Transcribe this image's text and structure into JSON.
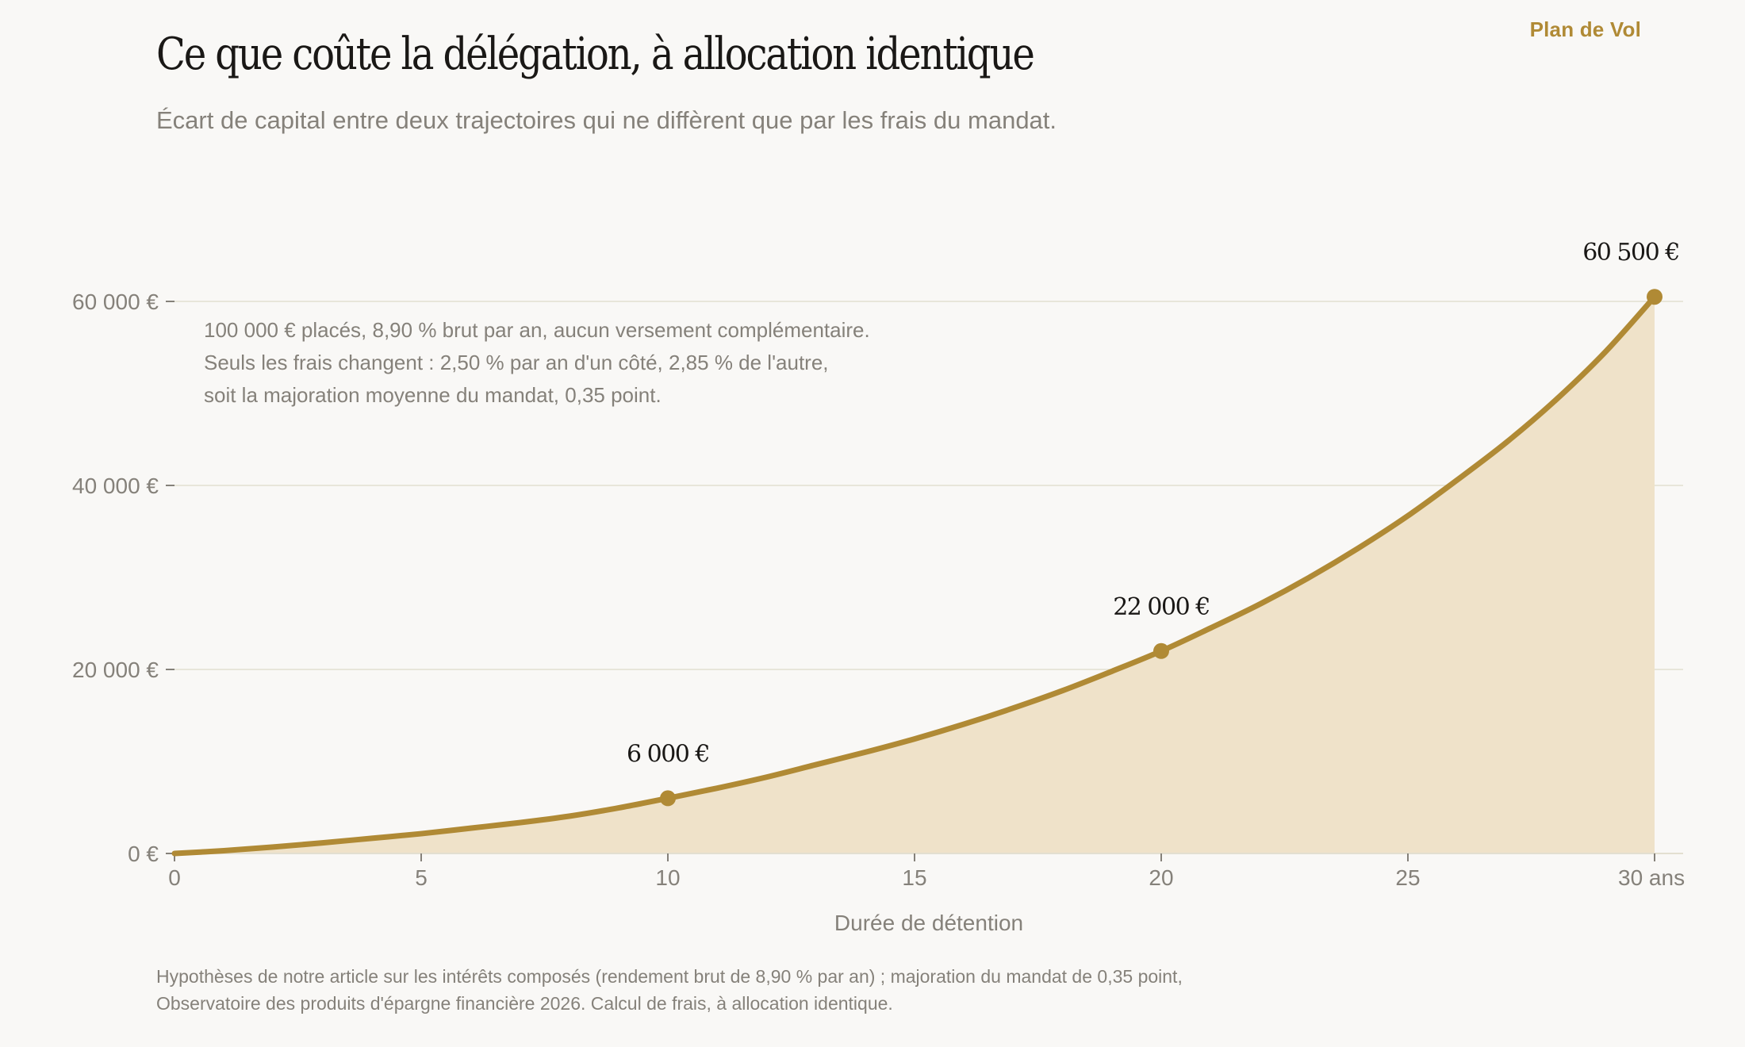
{
  "header": {
    "brand": "Plan de Vol",
    "title": "Ce que coûte la délégation, à allocation identique",
    "subtitle": "Écart de capital entre deux trajectoires qui ne diffèrent que par les frais du mandat."
  },
  "footnote": "Hypothèses de notre article sur les intérêts composés (rendement brut de 8,90 % par an) ; majoration du mandat de 0,35 point, Observatoire des produits d'épargne financière 2026. Calcul de frais, à allocation identique.",
  "colors": {
    "accent": "#b08a35",
    "area_fill": "#efe2c9",
    "grid": "#e3dfd1",
    "muted_text": "#85817a"
  },
  "chart_data": {
    "type": "area",
    "title": "Ce que coûte la délégation, à allocation identique",
    "subtitle": "Écart de capital entre deux trajectoires qui ne diffèrent que par les frais du mandat.",
    "xlabel": "Durée de détention",
    "ylabel": "",
    "xlim": [
      0,
      30
    ],
    "ylim": [
      0,
      60500
    ],
    "x_ticks": [
      0,
      5,
      10,
      15,
      20,
      25,
      30
    ],
    "x_tick_labels": [
      "0",
      "5",
      "10",
      "15",
      "20",
      "25",
      "30 ans"
    ],
    "y_ticks": [
      0,
      20000,
      40000,
      60000
    ],
    "y_tick_labels": [
      "0 €",
      "20 000 €",
      "40 000 €",
      "60 000 €"
    ],
    "grid": "horizontal",
    "x": [
      0,
      1,
      2,
      3,
      4,
      5,
      6,
      7,
      8,
      9,
      10,
      11,
      12,
      13,
      14,
      15,
      16,
      17,
      18,
      19,
      20,
      21,
      22,
      23,
      24,
      25,
      26,
      27,
      28,
      29,
      30
    ],
    "series": [
      {
        "values": [
          0,
          300,
          700,
          1150,
          1650,
          2150,
          2750,
          3350,
          4050,
          4950,
          6000,
          7100,
          8300,
          9650,
          11000,
          12450,
          14050,
          15800,
          17700,
          19800,
          22000,
          24500,
          27100,
          30000,
          33200,
          36700,
          40600,
          44700,
          49300,
          54500,
          60500
        ]
      }
    ],
    "highlights": [
      {
        "x": 10,
        "y": 6000,
        "label": "6 000 €"
      },
      {
        "x": 20,
        "y": 22000,
        "label": "22 000 €"
      },
      {
        "x": 30,
        "y": 60500,
        "label": "60 500 €"
      }
    ],
    "annotation": [
      "100 000 € placés, 8,90 % brut par an, aucun versement complémentaire.",
      "Seuls les frais changent : 2,50 % par an d'un côté, 2,85 % de l'autre,",
      "soit la majoration moyenne du mandat, 0,35 point."
    ]
  }
}
